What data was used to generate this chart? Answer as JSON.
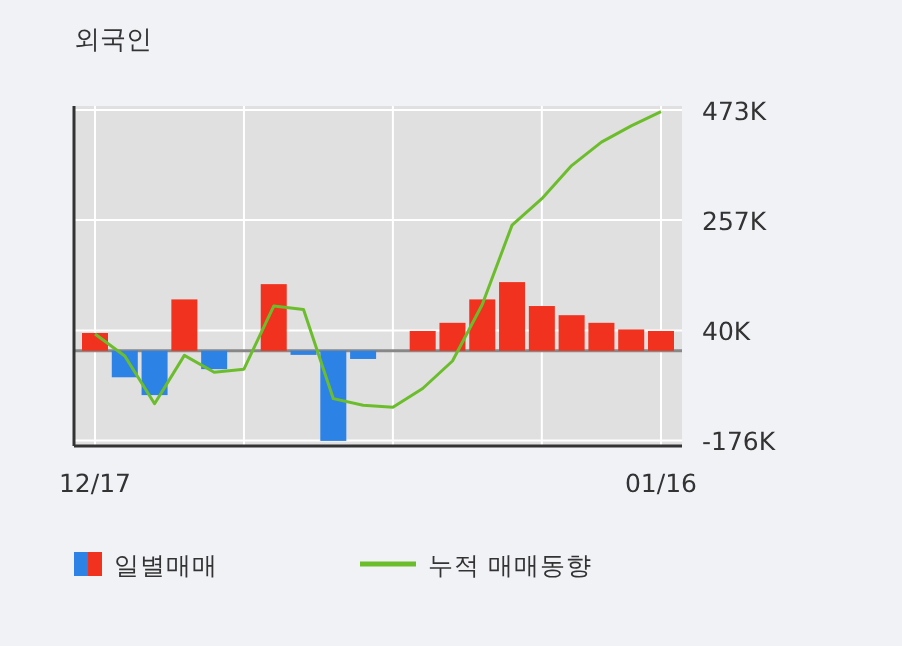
{
  "chart_data": {
    "type": "bar",
    "title": "외국인",
    "categories": [
      "12/17",
      null,
      null,
      null,
      null,
      null,
      null,
      null,
      null,
      null,
      null,
      null,
      null,
      null,
      null,
      null,
      null,
      null,
      null,
      "01/16"
    ],
    "series": [
      {
        "name": "일별매매",
        "colors": [
          "#f0321e",
          "#2d82e6",
          "#2d82e6",
          "#f0321e",
          "#2d82e6",
          "#f0321e",
          "#f0321e",
          "#2d82e6",
          "#2d82e6",
          "#2d82e6",
          "#f0321e",
          "#f0321e",
          "#f0321e",
          "#f0321e",
          "#f0321e",
          "#f0321e",
          "#f0321e",
          "#f0321e",
          "#f0321e",
          "#f0321e"
        ],
        "values": [
          35,
          -52,
          -87,
          101,
          -36,
          0,
          131,
          -8,
          -177,
          -16,
          0,
          39,
          55,
          101,
          135,
          88,
          70,
          55,
          42,
          39
        ]
      },
      {
        "name": "누적 매매동향",
        "type": "line",
        "color": "#6cbd2b",
        "values": [
          33,
          -10,
          -104,
          -9,
          -42,
          -36,
          88,
          81,
          -94,
          -107,
          -111,
          -74,
          -20,
          91,
          247,
          299,
          364,
          410,
          442,
          470
        ]
      }
    ],
    "ylim": [
      -187,
      481
    ],
    "yticks": [
      {
        "value": 473,
        "label": "473K"
      },
      {
        "value": 257,
        "label": "257K"
      },
      {
        "value": 40,
        "label": "40K"
      },
      {
        "value": -176,
        "label": "-176K"
      }
    ],
    "grid": true,
    "legend": "bottom",
    "marker": "none"
  }
}
